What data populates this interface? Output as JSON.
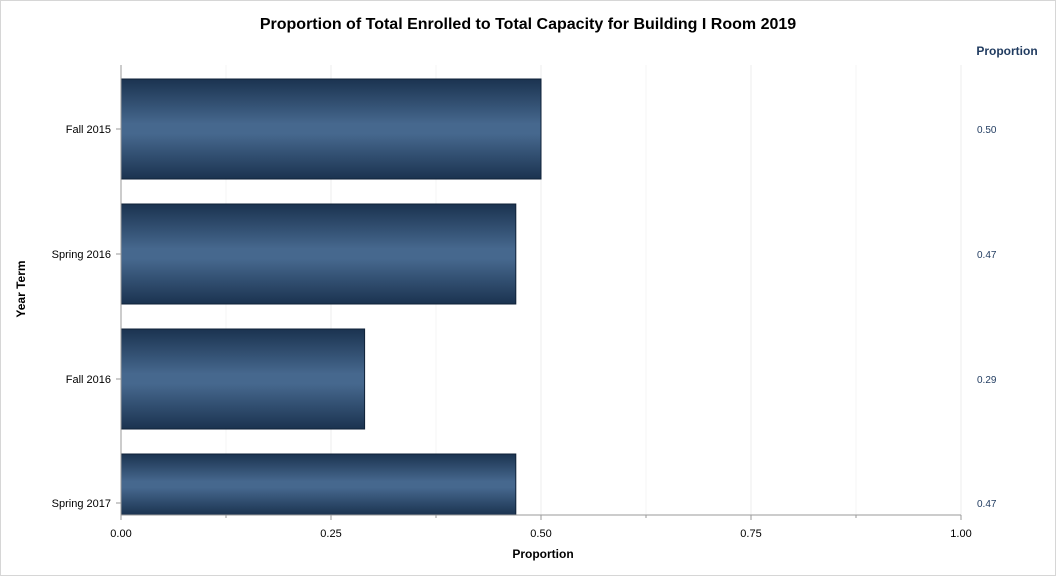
{
  "chart_data": {
    "type": "bar",
    "orientation": "horizontal",
    "title": "Proportion of Total Enrolled to Total Capacity for Building I Room 2019",
    "xlabel": "Proportion",
    "ylabel": "Year Term",
    "categories": [
      "Fall 2015",
      "Spring 2016",
      "Fall 2016",
      "Spring 2017"
    ],
    "values": [
      0.5,
      0.47,
      0.29,
      0.47
    ],
    "value_labels": [
      "0.50",
      "0.47",
      "0.29",
      "0.47"
    ],
    "value_column_header": "Proportion",
    "xlim": [
      0,
      1
    ],
    "xticks": [
      0,
      0.25,
      0.5,
      0.75,
      1
    ],
    "xtick_labels": [
      "0.00",
      "0.25",
      "0.50",
      "0.75",
      "1.00"
    ],
    "grid": true,
    "legend": "none",
    "colors": {
      "bar_center": "#46688e",
      "bar_edge": "#1b3350",
      "bar_outline": "#0f2238",
      "value_text": "#1f3a5f",
      "grid": "#ececec",
      "axis": "#9a9a9a"
    }
  }
}
